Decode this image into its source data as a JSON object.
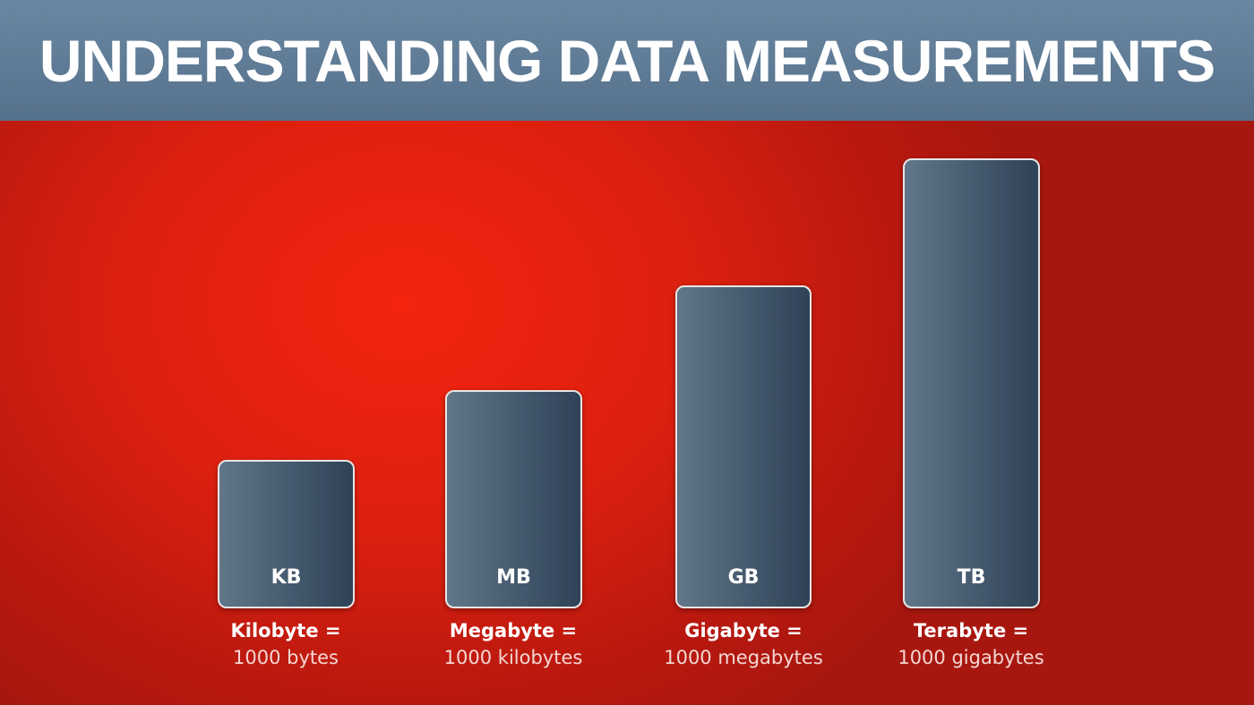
{
  "header": {
    "title": "UNDERSTANDING DATA MEASUREMENTS"
  },
  "units": [
    {
      "abbreviation": "KB",
      "name": "Kilobyte =",
      "definition": "1000 bytes"
    },
    {
      "abbreviation": "MB",
      "name": "Megabyte =",
      "definition": "1000 kilobytes"
    },
    {
      "abbreviation": "GB",
      "name": "Gigabyte =",
      "definition": "1000 megabytes"
    },
    {
      "abbreviation": "TB",
      "name": "Terabyte =",
      "definition": "1000 gigabytes"
    }
  ]
}
